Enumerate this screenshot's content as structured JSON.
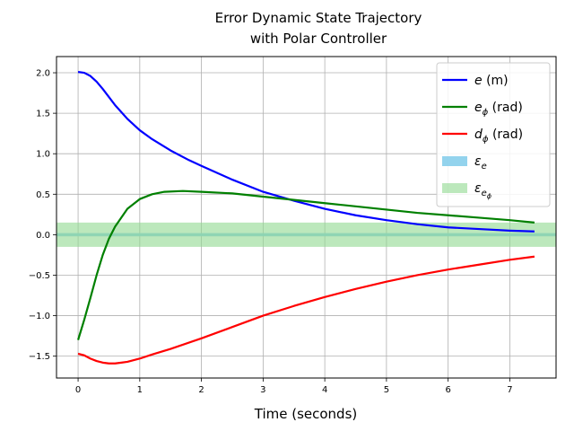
{
  "chart_data": {
    "type": "line",
    "title_line1": "Error Dynamic State Trajectory",
    "title_line2": "with Polar Controller",
    "xlabel": "Time (seconds)",
    "ylabel": "",
    "xlim": [
      -0.35,
      7.75
    ],
    "ylim": [
      -1.77,
      2.2
    ],
    "xticks": [
      0,
      1,
      2,
      3,
      4,
      5,
      6,
      7
    ],
    "yticks": [
      -1.5,
      -1.0,
      -0.5,
      0.0,
      0.5,
      1.0,
      1.5,
      2.0
    ],
    "xtick_labels": [
      "0",
      "1",
      "2",
      "3",
      "4",
      "5",
      "6",
      "7"
    ],
    "ytick_labels": [
      "−1.5",
      "−1.0",
      "−0.5",
      "0.0",
      "0.5",
      "1.0",
      "1.5",
      "2.0"
    ],
    "grid": true,
    "legend_position": "top-right",
    "series": [
      {
        "name": "e",
        "unit": " (m)",
        "color": "#0000ff",
        "x": [
          0,
          0.1,
          0.2,
          0.3,
          0.4,
          0.5,
          0.6,
          0.8,
          1.0,
          1.2,
          1.5,
          1.8,
          2.0,
          2.5,
          3.0,
          3.5,
          4.0,
          4.5,
          5.0,
          5.5,
          6.0,
          6.5,
          7.0,
          7.4
        ],
        "y": [
          2.01,
          2.0,
          1.96,
          1.89,
          1.8,
          1.7,
          1.6,
          1.43,
          1.29,
          1.18,
          1.04,
          0.92,
          0.85,
          0.68,
          0.53,
          0.42,
          0.32,
          0.24,
          0.18,
          0.13,
          0.09,
          0.07,
          0.05,
          0.04
        ]
      },
      {
        "name": "e",
        "sub": "ϕ",
        "unit": " (rad)",
        "color": "#008000",
        "x": [
          0,
          0.1,
          0.2,
          0.3,
          0.4,
          0.5,
          0.6,
          0.8,
          1.0,
          1.2,
          1.4,
          1.7,
          2.0,
          2.5,
          3.0,
          3.5,
          4.0,
          4.5,
          5.0,
          5.5,
          6.0,
          6.5,
          7.0,
          7.4
        ],
        "y": [
          -1.3,
          -1.05,
          -0.78,
          -0.5,
          -0.25,
          -0.05,
          0.1,
          0.32,
          0.44,
          0.5,
          0.53,
          0.54,
          0.53,
          0.51,
          0.47,
          0.43,
          0.39,
          0.35,
          0.31,
          0.27,
          0.24,
          0.21,
          0.18,
          0.15
        ]
      },
      {
        "name": "d",
        "sub": "ϕ",
        "unit": " (rad)",
        "color": "#ff0000",
        "x": [
          0,
          0.1,
          0.2,
          0.3,
          0.4,
          0.5,
          0.6,
          0.7,
          0.8,
          1.0,
          1.2,
          1.5,
          2.0,
          2.5,
          3.0,
          3.5,
          4.0,
          4.5,
          5.0,
          5.5,
          6.0,
          6.5,
          7.0,
          7.4
        ],
        "y": [
          -1.47,
          -1.49,
          -1.53,
          -1.56,
          -1.58,
          -1.59,
          -1.59,
          -1.58,
          -1.57,
          -1.53,
          -1.48,
          -1.41,
          -1.28,
          -1.14,
          -1.0,
          -0.88,
          -0.77,
          -0.67,
          -0.58,
          -0.5,
          -0.43,
          -0.37,
          -0.31,
          -0.27
        ]
      }
    ],
    "bands": [
      {
        "name": "ε",
        "sub": "e",
        "color": "#87ceeb",
        "alpha": 0.9,
        "range": [
          -0.02,
          0.02
        ]
      },
      {
        "name": "ε",
        "sub": "e",
        "sub2": "ϕ",
        "color": "#90d890",
        "alpha": 0.6,
        "range": [
          -0.15,
          0.15
        ]
      }
    ]
  }
}
